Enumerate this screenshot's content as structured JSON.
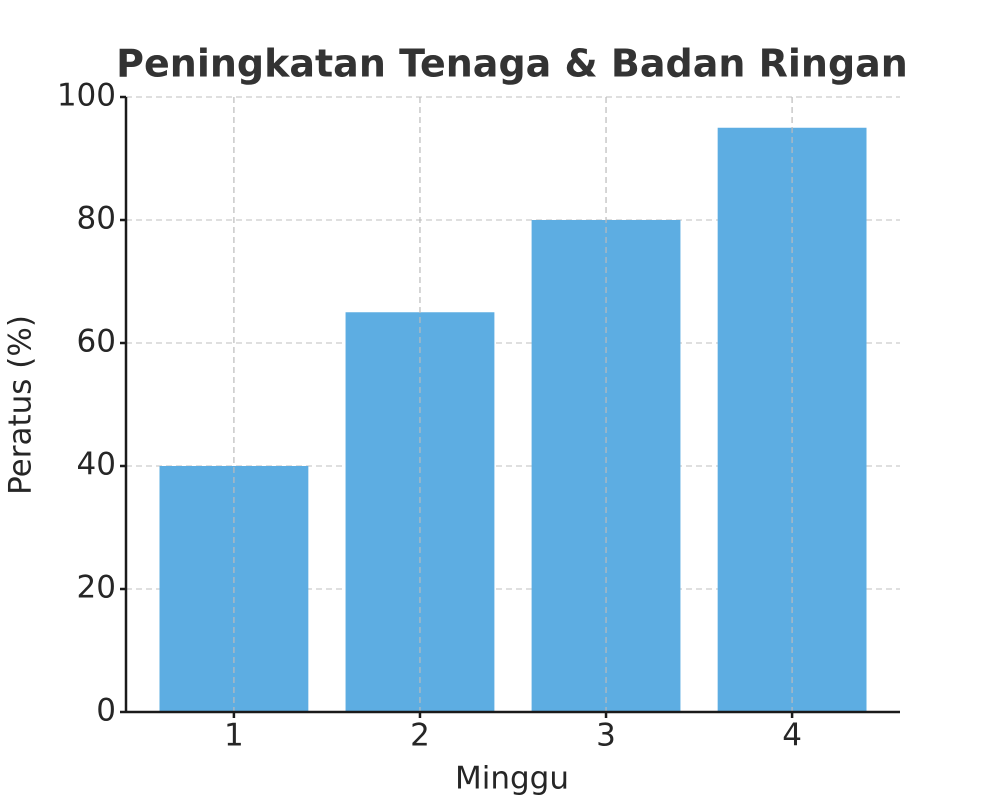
{
  "chart_data": {
    "type": "bar",
    "title": "Peningkatan Tenaga & Badan Ringan",
    "xlabel": "Minggu",
    "ylabel": "Peratus (%)",
    "x": [
      1,
      2,
      3,
      4
    ],
    "values": [
      40,
      65,
      80,
      95
    ],
    "color": "#5dade2",
    "xlim": [
      0.42,
      4.58
    ],
    "xticks": [
      1,
      2,
      3,
      4
    ],
    "ylim": [
      0,
      100
    ],
    "yticks": [
      0,
      20,
      40,
      60,
      80,
      100
    ],
    "grid": true
  }
}
